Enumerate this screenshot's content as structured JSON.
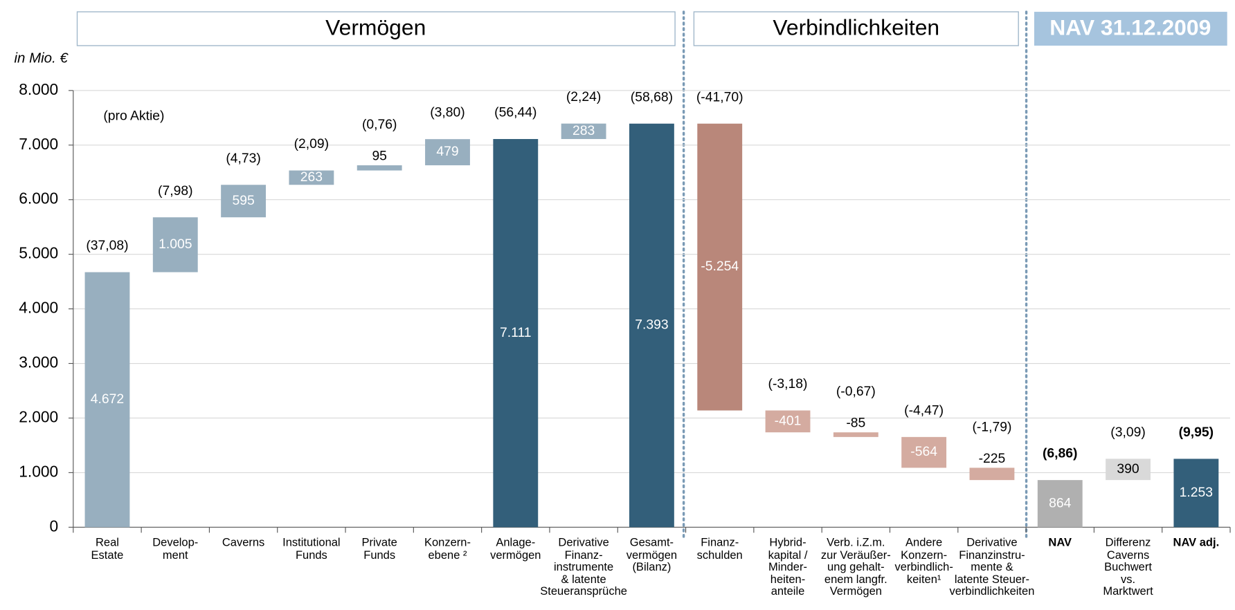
{
  "chart_data": {
    "type": "waterfall",
    "sections": [
      "Vermögen",
      "Verbindlichkeiten",
      "NAV 31.12.2009"
    ],
    "y_label": "in Mio. €",
    "annotation": "(pro Aktie)",
    "categories": [
      "Real\nEstate",
      "Develop-\nment",
      "Caverns",
      "Institutional\nFunds",
      "Private\nFunds",
      "Konzern-\nebene ²",
      "Anlage-\nvermögen",
      "Derivative\nFinanz-\ninstrumente\n& latente\nSteueransprüche",
      "Gesamt-\nvermögen\n(Bilanz)",
      "Finanz-\nschulden",
      "Hybrid-\nkapital /\nMinder-\nheiten-\nanteile",
      "Verb.  i.Z.m.\nzur Veräußer-\nung gehalt-\nenem langfr.\nVermögen",
      "Andere\nKonzern-\nverbindlich-\nkeiten¹",
      "Derivative\nFinanzinstru-\nmente &\nlatente Steuer-\nverbindlichkeiten",
      "NAV",
      "Differenz\nCaverns\nBuchwert\nvs.\nMarktwert",
      "NAV adj."
    ],
    "values": [
      4672,
      1005,
      595,
      263,
      95,
      479,
      7111,
      283,
      7393,
      -5254,
      -401,
      -85,
      -564,
      -225,
      864,
      390,
      1253
    ],
    "value_labels": [
      "4.672",
      "1.005",
      "595",
      "263",
      "95",
      "479",
      "7.111",
      "283",
      "7.393",
      "-5.254",
      "-401",
      "-85",
      "-564",
      "-225",
      "864",
      "390",
      "1.253"
    ],
    "measure": [
      "relative",
      "relative",
      "relative",
      "relative",
      "relative",
      "relative",
      "total",
      "relative",
      "total",
      "relative",
      "relative",
      "relative",
      "relative",
      "relative",
      "total",
      "relative",
      "total"
    ],
    "per_share_labels": [
      "(37,08)",
      "(7,98)",
      "(4,73)",
      "(2,09)",
      "(0,76)",
      "(3,80)",
      "(56,44)",
      "(2,24)",
      "(58,68)",
      "(-41,70)",
      "(-3,18)",
      "(-0,67)",
      "(-4,47)",
      "(-1,79)",
      "(6,86)",
      "(3,09)",
      "(9,95)"
    ],
    "bold": [
      false,
      false,
      false,
      false,
      false,
      false,
      false,
      false,
      false,
      false,
      false,
      false,
      false,
      false,
      true,
      false,
      true
    ],
    "colors": [
      "#98afbf",
      "#98afbf",
      "#98afbf",
      "#98afbf",
      "#98afbf",
      "#98afbf",
      "#335f7a",
      "#98afbf",
      "#335f7a",
      "#b9877a",
      "#d4aba0",
      "#d4aba0",
      "#d4aba0",
      "#d4aba0",
      "#b0b0b0",
      "#d9d9d9",
      "#335f7a"
    ],
    "value_label_colors": [
      "#ffffff",
      "#ffffff",
      "#ffffff",
      "#ffffff",
      "#000000",
      "#ffffff",
      "#ffffff",
      "#ffffff",
      "#ffffff",
      "#ffffff",
      "#ffffff",
      "#000000",
      "#ffffff",
      "#000000",
      "#ffffff",
      "#000000",
      "#ffffff"
    ],
    "ylim": [
      0,
      8000
    ],
    "yticks": [
      0,
      {
        "value": 1000,
        "label": "1.000"
      },
      {
        "value": 2000,
        "label": "2.000"
      },
      {
        "value": 3000,
        "label": "3.000"
      },
      {
        "value": 4000,
        "label": "4.000"
      },
      {
        "value": 5000,
        "label": "5.000"
      },
      {
        "value": 6000,
        "label": "6.000"
      },
      {
        "value": 7000,
        "label": "7.000"
      },
      {
        "value": 8000,
        "label": "8.000"
      }
    ],
    "grid": true
  }
}
